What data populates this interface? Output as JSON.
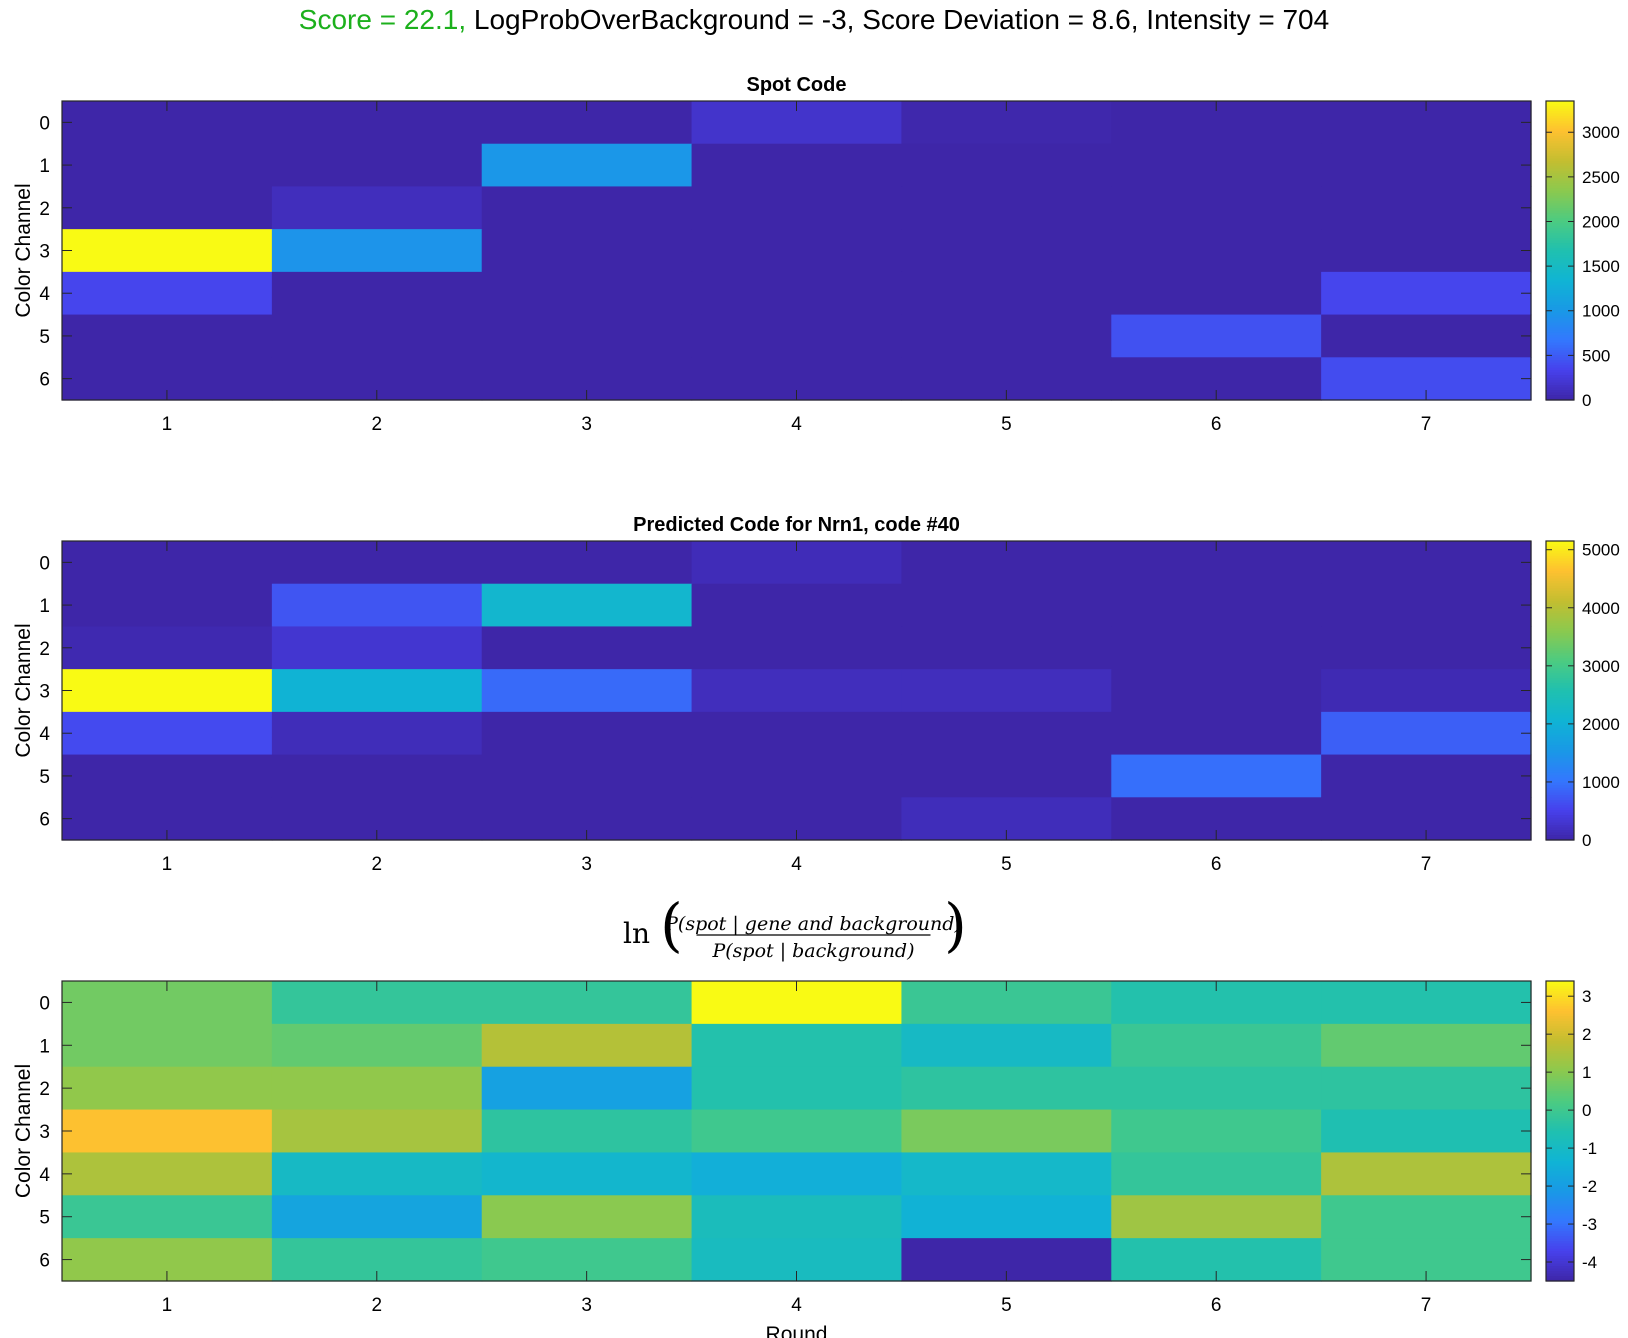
{
  "header": {
    "score_text": "Score = 22.1,",
    "rest_text": " LogProbOverBackground = -3, Score Deviation = 8.6, Intensity = 704",
    "score_color": "#1cb01c"
  },
  "chart_data": [
    {
      "type": "heatmap",
      "title": "Spot Code",
      "xlabel": "",
      "ylabel": "Color Channel",
      "x_ticks": [
        "1",
        "2",
        "3",
        "4",
        "5",
        "6",
        "7"
      ],
      "y_ticks": [
        "0",
        "1",
        "2",
        "3",
        "4",
        "5",
        "6"
      ],
      "clim": [
        0,
        3350
      ],
      "colorbar_ticks": [
        0,
        500,
        1000,
        1500,
        2000,
        2500,
        3000
      ],
      "values": [
        [
          0,
          0,
          0,
          170,
          20,
          0,
          0
        ],
        [
          0,
          0,
          980,
          0,
          0,
          0,
          0
        ],
        [
          0,
          100,
          0,
          0,
          0,
          0,
          0
        ],
        [
          3350,
          950,
          0,
          0,
          0,
          0,
          0
        ],
        [
          360,
          0,
          0,
          0,
          0,
          0,
          360
        ],
        [
          0,
          0,
          0,
          0,
          0,
          430,
          0
        ],
        [
          0,
          0,
          0,
          0,
          0,
          0,
          400
        ]
      ]
    },
    {
      "type": "heatmap",
      "title": "Predicted Code for Nrn1, code #40",
      "xlabel": "",
      "ylabel": "Color Channel",
      "x_ticks": [
        "1",
        "2",
        "3",
        "4",
        "5",
        "6",
        "7"
      ],
      "y_ticks": [
        "0",
        "1",
        "2",
        "3",
        "4",
        "5",
        "6"
      ],
      "clim": [
        0,
        5150
      ],
      "colorbar_ticks": [
        0,
        1000,
        2000,
        3000,
        4000,
        5000
      ],
      "values": [
        [
          0,
          0,
          0,
          120,
          0,
          0,
          0
        ],
        [
          0,
          700,
          2150,
          0,
          0,
          0,
          0
        ],
        [
          60,
          300,
          0,
          0,
          0,
          0,
          0
        ],
        [
          5150,
          2050,
          900,
          150,
          150,
          0,
          80
        ],
        [
          600,
          130,
          0,
          0,
          0,
          0,
          800
        ],
        [
          0,
          0,
          0,
          0,
          0,
          950,
          0
        ],
        [
          0,
          0,
          0,
          0,
          140,
          0,
          0
        ]
      ]
    },
    {
      "type": "heatmap",
      "title": "ln( P(spot | gene and background) / P(spot | background) )",
      "title_numerator": "P(spot | gene and background)",
      "title_denominator": "P(spot | background)",
      "title_prefix": "ln",
      "xlabel": "Round",
      "ylabel": "Color Channel",
      "x_ticks": [
        "1",
        "2",
        "3",
        "4",
        "5",
        "6",
        "7"
      ],
      "y_ticks": [
        "0",
        "1",
        "2",
        "3",
        "4",
        "5",
        "6"
      ],
      "clim": [
        -4.5,
        3.4
      ],
      "colorbar_ticks": [
        -4,
        -3,
        -2,
        -1,
        0,
        1,
        2,
        3
      ],
      "values": [
        [
          0.7,
          -0.2,
          -0.2,
          3.4,
          -0.1,
          -0.5,
          -0.5
        ],
        [
          0.7,
          0.5,
          1.6,
          -0.5,
          -1.0,
          -0.1,
          0.5
        ],
        [
          1.1,
          1.1,
          -1.9,
          -0.5,
          -0.3,
          -0.3,
          -0.3
        ],
        [
          2.6,
          1.4,
          -0.3,
          0.0,
          0.8,
          0.0,
          -0.6
        ],
        [
          1.5,
          -1.0,
          -1.2,
          -1.5,
          -1.1,
          -0.2,
          1.5
        ],
        [
          -0.1,
          -1.8,
          1.0,
          -0.8,
          -1.4,
          1.3,
          0.0
        ],
        [
          1.1,
          -0.2,
          0.0,
          -0.9,
          -4.5,
          -0.5,
          0.0
        ]
      ]
    }
  ]
}
